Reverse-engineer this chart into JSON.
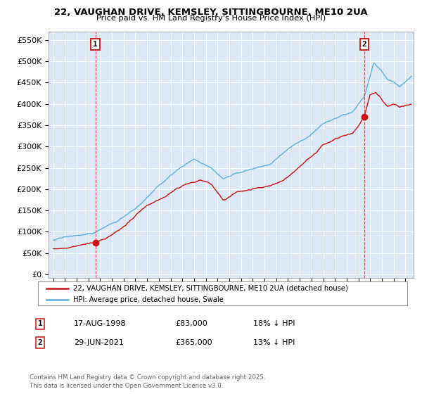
{
  "title_line1": "22, VAUGHAN DRIVE, KEMSLEY, SITTINGBOURNE, ME10 2UA",
  "title_line2": "Price paid vs. HM Land Registry's House Price Index (HPI)",
  "yticks": [
    0,
    50000,
    100000,
    150000,
    200000,
    250000,
    300000,
    350000,
    400000,
    450000,
    500000,
    550000
  ],
  "ytick_labels": [
    "£0",
    "£50K",
    "£100K",
    "£150K",
    "£200K",
    "£250K",
    "£300K",
    "£350K",
    "£400K",
    "£450K",
    "£500K",
    "£550K"
  ],
  "ylim": [
    -8000,
    570000
  ],
  "hpi_color": "#5baee0",
  "price_color": "#cc1111",
  "marker1_label": "1",
  "marker1_date_str": "17-AUG-1998",
  "marker1_price": 83000,
  "marker1_pct": "18% ↓ HPI",
  "marker1_t": 1998.625,
  "marker2_label": "2",
  "marker2_date_str": "29-JUN-2021",
  "marker2_price": 365000,
  "marker2_pct": "13% ↓ HPI",
  "marker2_t": 2021.5,
  "legend_line1": "22, VAUGHAN DRIVE, KEMSLEY, SITTINGBOURNE, ME10 2UA (detached house)",
  "legend_line2": "HPI: Average price, detached house, Swale",
  "footer": "Contains HM Land Registry data © Crown copyright and database right 2025.\nThis data is licensed under the Open Government Licence v3.0.",
  "plot_bg": "#dce8f5",
  "grid_color": "white"
}
